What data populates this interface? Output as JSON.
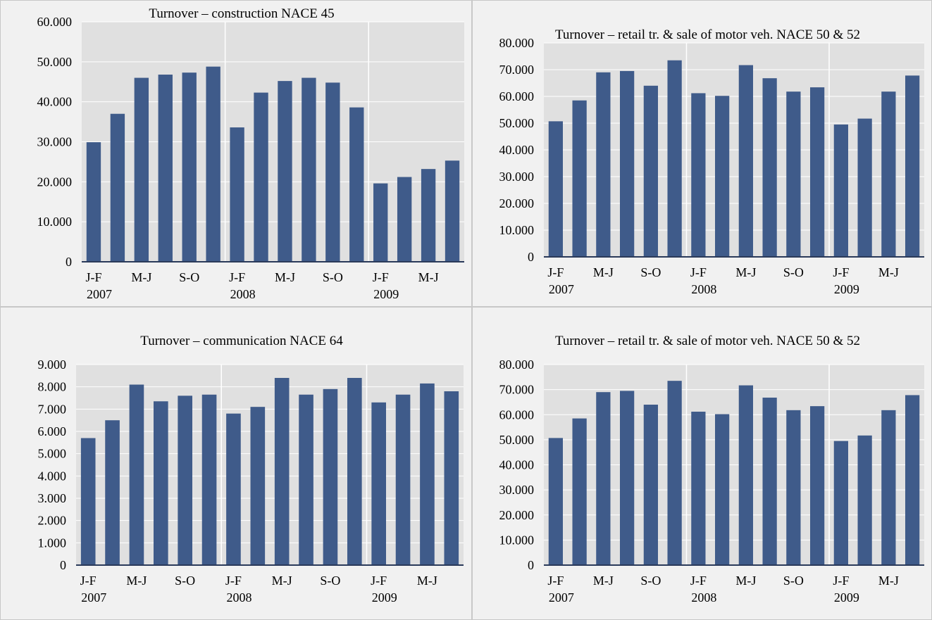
{
  "chart_data": [
    {
      "type": "bar",
      "title": "Turnover – construction  NACE 45",
      "categories": [
        "J-F 2007",
        "M-A 2007",
        "M-J 2007",
        "J-A 2007",
        "S-O 2007",
        "N-D 2007",
        "J-F 2008",
        "M-A 2008",
        "M-J 2008",
        "J-A 2008",
        "S-O 2008",
        "N-D 2008",
        "J-F 2009",
        "M-A 2009",
        "M-J 2009",
        "J-A 2009"
      ],
      "x_labels": [
        {
          "index": 0,
          "line1": "J-F",
          "line2": "2007"
        },
        {
          "index": 2,
          "line1": "M-J",
          "line2": ""
        },
        {
          "index": 4,
          "line1": "S-O",
          "line2": ""
        },
        {
          "index": 6,
          "line1": "J-F",
          "line2": "2008"
        },
        {
          "index": 8,
          "line1": "M-J",
          "line2": ""
        },
        {
          "index": 10,
          "line1": "S-O",
          "line2": ""
        },
        {
          "index": 12,
          "line1": "J-F",
          "line2": "2009"
        },
        {
          "index": 14,
          "line1": "M-J",
          "line2": ""
        }
      ],
      "values": [
        29900,
        37000,
        46000,
        46800,
        47300,
        48800,
        33600,
        42300,
        45200,
        46000,
        44800,
        38600,
        19600,
        21200,
        23200,
        25300
      ],
      "ylim": [
        0,
        60000
      ],
      "yticks": [
        "0",
        "10.000",
        "20.000",
        "30.000",
        "40.000",
        "50.000",
        "60.000"
      ],
      "year_dividers": [
        6,
        12
      ],
      "grid": true,
      "bar_color": "#3f5b8a"
    },
    {
      "type": "bar",
      "title": "Turnover – retail  tr. & sale of motor veh. NACE 50 & 52",
      "categories": [
        "J-F 2007",
        "M-A 2007",
        "M-J 2007",
        "J-A 2007",
        "S-O 2007",
        "N-D 2007",
        "J-F 2008",
        "M-A 2008",
        "M-J 2008",
        "J-A 2008",
        "S-O 2008",
        "N-D 2008",
        "J-F 2009",
        "M-A 2009",
        "M-J 2009",
        "J-A 2009"
      ],
      "x_labels": [
        {
          "index": 0,
          "line1": "J-F",
          "line2": "2007"
        },
        {
          "index": 2,
          "line1": "M-J",
          "line2": ""
        },
        {
          "index": 4,
          "line1": "S-O",
          "line2": ""
        },
        {
          "index": 6,
          "line1": "J-F",
          "line2": "2008"
        },
        {
          "index": 8,
          "line1": "M-J",
          "line2": ""
        },
        {
          "index": 10,
          "line1": "S-O",
          "line2": ""
        },
        {
          "index": 12,
          "line1": "J-F",
          "line2": "2009"
        },
        {
          "index": 14,
          "line1": "M-J",
          "line2": ""
        }
      ],
      "values": [
        50700,
        58500,
        69000,
        69500,
        64000,
        73500,
        61200,
        60200,
        71700,
        66800,
        61800,
        63400,
        49500,
        51700,
        61800,
        67800
      ],
      "ylim": [
        0,
        80000
      ],
      "yticks": [
        "0",
        "10.000",
        "20.000",
        "30.000",
        "40.000",
        "50.000",
        "60.000",
        "70.000",
        "80.000"
      ],
      "year_dividers": [
        6,
        12
      ],
      "grid": true,
      "bar_color": "#3f5b8a"
    },
    {
      "type": "bar",
      "title": "Turnover – communication  NACE 64",
      "categories": [
        "J-F 2007",
        "M-A 2007",
        "M-J 2007",
        "J-A 2007",
        "S-O 2007",
        "N-D 2007",
        "J-F 2008",
        "M-A 2008",
        "M-J 2008",
        "J-A 2008",
        "S-O 2008",
        "N-D 2008",
        "J-F 2009",
        "M-A 2009",
        "M-J 2009",
        "J-A 2009"
      ],
      "x_labels": [
        {
          "index": 0,
          "line1": "J-F",
          "line2": "2007"
        },
        {
          "index": 2,
          "line1": "M-J",
          "line2": ""
        },
        {
          "index": 4,
          "line1": "S-O",
          "line2": ""
        },
        {
          "index": 6,
          "line1": "J-F",
          "line2": "2008"
        },
        {
          "index": 8,
          "line1": "M-J",
          "line2": ""
        },
        {
          "index": 10,
          "line1": "S-O",
          "line2": ""
        },
        {
          "index": 12,
          "line1": "J-F",
          "line2": "2009"
        },
        {
          "index": 14,
          "line1": "M-J",
          "line2": ""
        }
      ],
      "values": [
        5700,
        6500,
        8100,
        7350,
        7600,
        7650,
        6800,
        7100,
        8400,
        7650,
        7900,
        8400,
        7300,
        7650,
        8150,
        7800
      ],
      "ylim": [
        0,
        9000
      ],
      "yticks": [
        "0",
        "1.000",
        "2.000",
        "3.000",
        "4.000",
        "5.000",
        "6.000",
        "7.000",
        "8.000",
        "9.000"
      ],
      "year_dividers": [
        6,
        12
      ],
      "grid": true,
      "bar_color": "#3f5b8a"
    },
    {
      "type": "bar",
      "title": "Turnover – retail  tr. & sale of motor veh. NACE 50 & 52",
      "categories": [
        "J-F 2007",
        "M-A 2007",
        "M-J 2007",
        "J-A 2007",
        "S-O 2007",
        "N-D 2007",
        "J-F 2008",
        "M-A 2008",
        "M-J 2008",
        "J-A 2008",
        "S-O 2008",
        "N-D 2008",
        "J-F 2009",
        "M-A 2009",
        "M-J 2009",
        "J-A 2009"
      ],
      "x_labels": [
        {
          "index": 0,
          "line1": "J-F",
          "line2": "2007"
        },
        {
          "index": 2,
          "line1": "M-J",
          "line2": ""
        },
        {
          "index": 4,
          "line1": "S-O",
          "line2": ""
        },
        {
          "index": 6,
          "line1": "J-F",
          "line2": "2008"
        },
        {
          "index": 8,
          "line1": "M-J",
          "line2": ""
        },
        {
          "index": 10,
          "line1": "S-O",
          "line2": ""
        },
        {
          "index": 12,
          "line1": "J-F",
          "line2": "2009"
        },
        {
          "index": 14,
          "line1": "M-J",
          "line2": ""
        }
      ],
      "values": [
        50700,
        58500,
        69000,
        69500,
        64000,
        73500,
        61200,
        60200,
        71700,
        66800,
        61800,
        63400,
        49500,
        51700,
        61800,
        67800
      ],
      "ylim": [
        0,
        80000
      ],
      "yticks": [
        "0",
        "10.000",
        "20.000",
        "30.000",
        "40.000",
        "50.000",
        "60.000",
        "70.000",
        "80.000"
      ],
      "year_dividers": [
        6,
        12
      ],
      "grid": true,
      "bar_color": "#3f5b8a"
    }
  ]
}
